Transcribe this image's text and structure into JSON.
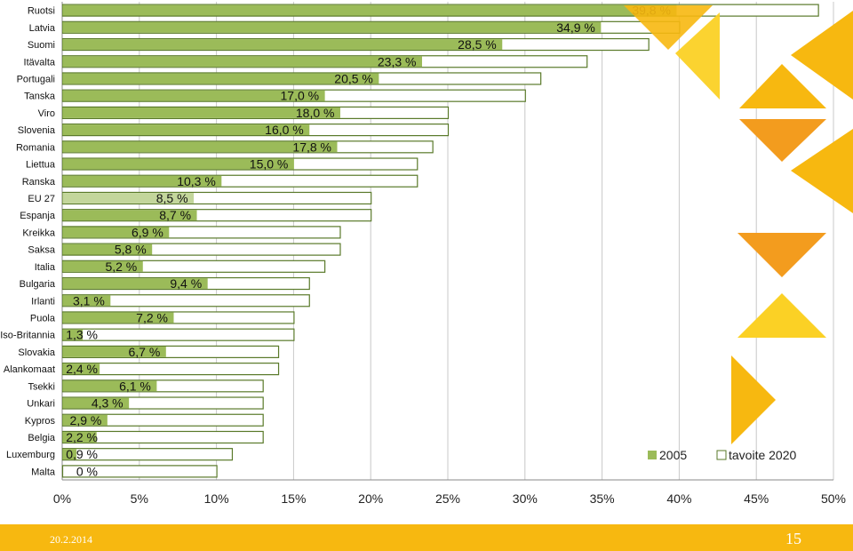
{
  "chart_data": {
    "type": "bar",
    "orientation": "horizontal",
    "categories": [
      "Ruotsi",
      "Latvia",
      "Suomi",
      "Itävalta",
      "Portugali",
      "Tanska",
      "Viro",
      "Slovenia",
      "Romania",
      "Liettua",
      "Ranska",
      "EU 27",
      "Espanja",
      "Kreikka",
      "Saksa",
      "Italia",
      "Bulgaria",
      "Irlanti",
      "Puola",
      "Iso-Britannia",
      "Slovakia",
      "Alankomaat",
      "Tsekki",
      "Unkari",
      "Kypros",
      "Belgia",
      "Luxemburg",
      "Malta"
    ],
    "series": [
      {
        "name": "2005",
        "values": [
          39.8,
          34.9,
          28.5,
          23.3,
          20.5,
          17.0,
          18.0,
          16.0,
          17.8,
          15.0,
          10.3,
          8.5,
          8.7,
          6.9,
          5.8,
          5.2,
          9.4,
          3.1,
          7.2,
          1.3,
          6.7,
          2.4,
          6.1,
          4.3,
          2.9,
          2.2,
          0.9,
          0
        ]
      },
      {
        "name": "tavoite 2020",
        "values": [
          49,
          40,
          38,
          34,
          31,
          30,
          25,
          25,
          24,
          23,
          23,
          20,
          20,
          18,
          18,
          17,
          16,
          16,
          15,
          15,
          14,
          14,
          13,
          13,
          13,
          13,
          11,
          10
        ]
      }
    ],
    "value_labels": [
      "39,8 %",
      "34,9 %",
      "28,5 %",
      "23,3 %",
      "20,5 %",
      "17,0 %",
      "18,0 %",
      "16,0 %",
      "17,8 %",
      "15,0 %",
      "10,3 %",
      "8,5 %",
      "8,7 %",
      "6,9 %",
      "5,8 %",
      "5,2 %",
      "9,4 %",
      "3,1 %",
      "7,2 %",
      "1,3 %",
      "6,7 %",
      "2,4 %",
      "6,1 %",
      "4,3 %",
      "2,9 %",
      "2,2 %",
      "0,9 %",
      "0 %"
    ],
    "highlight_category": "EU 27",
    "x_ticks": [
      "0%",
      "5%",
      "10%",
      "15%",
      "20%",
      "25%",
      "30%",
      "35%",
      "40%",
      "45%",
      "50%"
    ],
    "xlim": [
      0,
      50
    ],
    "grid": true,
    "legend_position": "bottom-right",
    "colors": {
      "bar_2005": "#9bbb59",
      "bar_eu27": "#c3d69b",
      "target_border": "#5a7a2a",
      "grid": "#c8c8c8"
    }
  },
  "footer": {
    "date": "20.2.2014",
    "page": "15",
    "color": "#f7b810"
  }
}
